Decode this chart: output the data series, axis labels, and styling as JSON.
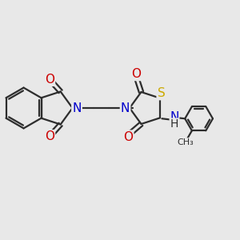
{
  "bg_color": "#e8e8e8",
  "bond_color": "#2d2d2d",
  "N_color": "#0000cc",
  "O_color": "#cc0000",
  "S_color": "#ccaa00",
  "line_width": 1.6,
  "font_size_atom": 11,
  "fig_width": 3.0,
  "fig_height": 3.0,
  "xlim": [
    0,
    10
  ],
  "ylim": [
    0,
    10
  ]
}
